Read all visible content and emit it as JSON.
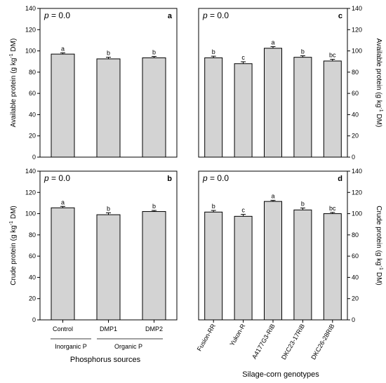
{
  "chart_data": [
    {
      "id": "a",
      "type": "bar",
      "panel_letter": "a",
      "pvalue_label": "p = 0.0",
      "categories": [
        "Control",
        "DMP1",
        "DMP2"
      ],
      "values": [
        97,
        92.5,
        93.5
      ],
      "errors": [
        1.2,
        1.5,
        1.3
      ],
      "sig_letters": [
        "a",
        "b",
        "b"
      ],
      "ylabel": "Available protein (g kg-1 DM)",
      "ylim": [
        0,
        140
      ],
      "yticks": [
        0,
        20,
        40,
        60,
        80,
        100,
        120,
        140
      ]
    },
    {
      "id": "c",
      "type": "bar",
      "panel_letter": "c",
      "pvalue_label": "p = 0.0",
      "categories": [
        "Fusion-RR",
        "Yukon-R",
        "A4177G3-RIB",
        "DKC23-17RIB",
        "DKC26-28RIB"
      ],
      "values": [
        93.5,
        88,
        102.5,
        94,
        90.5
      ],
      "errors": [
        1.5,
        1.8,
        1.5,
        1.4,
        1.6
      ],
      "sig_letters": [
        "b",
        "c",
        "a",
        "b",
        "bc"
      ],
      "ylabel": "Available protein (g kg-1 DM)",
      "ylim": [
        0,
        140
      ],
      "yticks": [
        0,
        20,
        40,
        60,
        80,
        100,
        120,
        140
      ]
    },
    {
      "id": "b",
      "type": "bar",
      "panel_letter": "b",
      "pvalue_label": "p = 0.0",
      "categories": [
        "Control",
        "DMP1",
        "DMP2"
      ],
      "values": [
        105.5,
        99,
        102
      ],
      "errors": [
        1.3,
        1.8,
        1.0
      ],
      "sig_letters": [
        "a",
        "b",
        "b"
      ],
      "ylabel": "Crude protein (g kg-1 DM)",
      "ylim": [
        0,
        140
      ],
      "yticks": [
        0,
        20,
        40,
        60,
        80,
        100,
        120,
        140
      ]
    },
    {
      "id": "d",
      "type": "bar",
      "panel_letter": "d",
      "pvalue_label": "p = 0.0",
      "categories": [
        "Fusion-RR",
        "Yukon-R",
        "A4177G3-RIB",
        "DKC23-17RIB",
        "DKC26-28RIB"
      ],
      "values": [
        101.5,
        97.5,
        111.5,
        103.5,
        100
      ],
      "errors": [
        1.5,
        1.8,
        1.0,
        1.8,
        1.2
      ],
      "sig_letters": [
        "b",
        "c",
        "a",
        "b",
        "bc"
      ],
      "ylabel": "Crude protein (g kg-1 DM)",
      "ylim": [
        0,
        140
      ],
      "yticks": [
        0,
        20,
        40,
        60,
        80,
        100,
        120,
        140
      ]
    }
  ],
  "left_bottom": {
    "group_inorganic": "Inorganic P",
    "group_organic": "Organic P",
    "xlabel": "Phosphorus sources"
  },
  "right_bottom": {
    "xlabel": "Silage-corn genotypes"
  },
  "colors": {
    "bar_fill": "#d3d3d3",
    "stroke": "#000000"
  }
}
